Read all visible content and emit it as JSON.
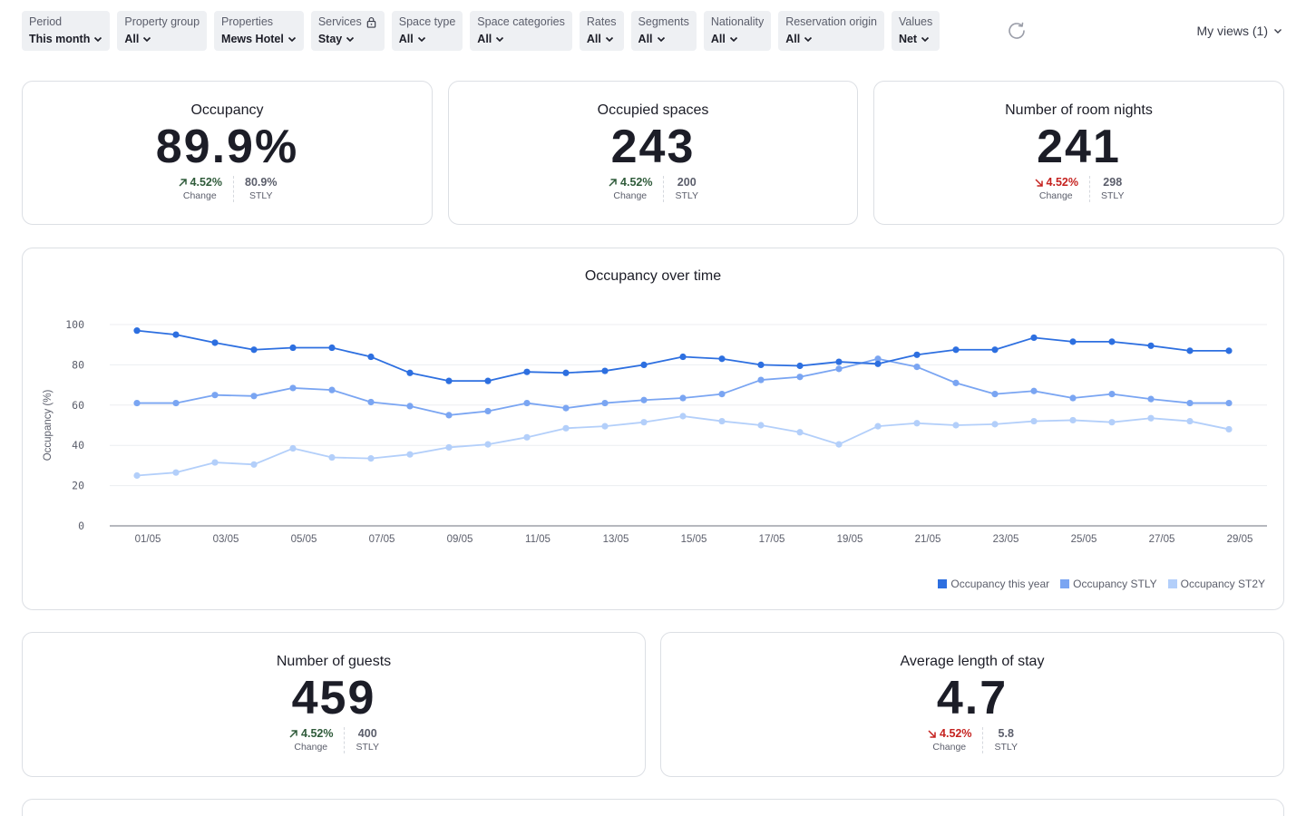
{
  "filters": [
    {
      "label": "Period",
      "value": "This month",
      "locked": false
    },
    {
      "label": "Property group",
      "value": "All",
      "locked": false
    },
    {
      "label": "Properties",
      "value": "Mews Hotel",
      "locked": false
    },
    {
      "label": "Services",
      "value": "Stay",
      "locked": true
    },
    {
      "label": "Space type",
      "value": "All",
      "locked": false
    },
    {
      "label": "Space categories",
      "value": "All",
      "locked": false
    },
    {
      "label": "Rates",
      "value": "All",
      "locked": false
    },
    {
      "label": "Segments",
      "value": "All",
      "locked": false
    },
    {
      "label": "Nationality",
      "value": "All",
      "locked": false
    },
    {
      "label": "Reservation origin",
      "value": "All",
      "locked": false
    },
    {
      "label": "Values",
      "value": "Net",
      "locked": false
    }
  ],
  "my_views": "My views (1)",
  "kpis": {
    "occupancy": {
      "title": "Occupancy",
      "value": "89.9%",
      "change": "4.52%",
      "change_dir": "up",
      "change_label": "Change",
      "stly": "80.9%",
      "stly_label": "STLY"
    },
    "occupied_spaces": {
      "title": "Occupied spaces",
      "value": "243",
      "change": "4.52%",
      "change_dir": "up",
      "change_label": "Change",
      "stly": "200",
      "stly_label": "STLY"
    },
    "room_nights": {
      "title": "Number of room nights",
      "value": "241",
      "change": "4.52%",
      "change_dir": "down",
      "change_label": "Change",
      "stly": "298",
      "stly_label": "STLY"
    },
    "guests": {
      "title": "Number of guests",
      "value": "459",
      "change": "4.52%",
      "change_dir": "up",
      "change_label": "Change",
      "stly": "400",
      "stly_label": "STLY"
    },
    "avg_stay": {
      "title": "Average length of stay",
      "value": "4.7",
      "change": "4.52%",
      "change_dir": "down",
      "change_label": "Change",
      "stly": "5.8",
      "stly_label": "STLY"
    }
  },
  "colors": {
    "up": "#2f5b3a",
    "down": "#c5221f",
    "series1": "#2d6fe0",
    "series2": "#7aa5f2",
    "series3": "#b3cffa"
  },
  "chart_data": {
    "type": "line",
    "title": "Occupancy over time",
    "xlabel": "",
    "ylabel": "Occupancy (%)",
    "ylim": [
      0,
      100
    ],
    "yticks": [
      0,
      20,
      40,
      60,
      80,
      100
    ],
    "x": [
      "01/05",
      "02/05",
      "03/05",
      "04/05",
      "05/05",
      "06/05",
      "07/05",
      "08/05",
      "09/05",
      "10/05",
      "11/05",
      "12/05",
      "13/05",
      "14/05",
      "15/05",
      "16/05",
      "17/05",
      "18/05",
      "19/05",
      "20/05",
      "21/05",
      "22/05",
      "23/05",
      "24/05",
      "25/05",
      "26/05",
      "27/05",
      "28/05",
      "29/05"
    ],
    "xtick_labels": [
      "01/05",
      "03/05",
      "05/05",
      "07/05",
      "09/05",
      "11/05",
      "13/05",
      "15/05",
      "17/05",
      "19/05",
      "21/05",
      "23/05",
      "25/05",
      "27/05",
      "29/05"
    ],
    "grid": true,
    "legend": "bottom-right",
    "series": [
      {
        "name": "Occupancy this year",
        "values": [
          97,
          95,
          91,
          87.5,
          88.5,
          88.5,
          84,
          76,
          72,
          72,
          76.5,
          76,
          77,
          80,
          84,
          83,
          80,
          79.5,
          81.5,
          80.5,
          85,
          87.5,
          87.5,
          93.5,
          91.5,
          91.5,
          89.5,
          87,
          87
        ]
      },
      {
        "name": "Occupancy STLY",
        "values": [
          61,
          61,
          65,
          64.5,
          68.5,
          67.5,
          61.5,
          59.5,
          55,
          57,
          61,
          58.5,
          61,
          62.5,
          63.5,
          65.5,
          72.5,
          74,
          78,
          83,
          79,
          71,
          65.5,
          67,
          63.5,
          65.5,
          63,
          61,
          61
        ]
      },
      {
        "name": "Occupancy ST2Y",
        "values": [
          25,
          26.5,
          31.5,
          30.5,
          38.5,
          34,
          33.5,
          35.5,
          39,
          40.5,
          44,
          48.5,
          49.5,
          51.5,
          54.5,
          52,
          50,
          46.5,
          40.5,
          49.5,
          51,
          50,
          50.5,
          52,
          52.5,
          51.5,
          53.5,
          52,
          48
        ]
      }
    ]
  }
}
